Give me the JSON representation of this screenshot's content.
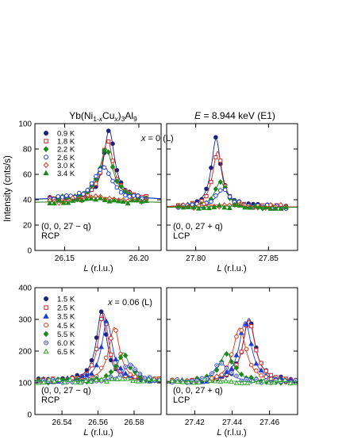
{
  "header": {
    "compound_parts": [
      "Yb(Ni",
      "1-",
      "x",
      "Cu",
      "x",
      ")",
      "3",
      "Al",
      "9"
    ],
    "energy_parts": [
      "E",
      " = 8.944 keV (E1)"
    ]
  },
  "y_axis_label": "Intensity  (cnts/s)",
  "colors": {
    "0.9 K": "#1a237e",
    "1.8 K": "#c62828",
    "2.2 K": "#1b8a1b",
    "2.6 K": "#1e3cd1",
    "3.0 K": "#d2391b",
    "3.4 K": "#1b8a1b",
    "1.5 K": "#1a237e",
    "2.5 K": "#c62828",
    "3.5 K": "#1e3cd1",
    "4.5 K": "#d2391b",
    "5.5 K": "#1b8a1b",
    "6.0 K": "#3a4bd6",
    "6.5 K": "#2ca02c"
  },
  "chart_data": [
    {
      "id": "p1",
      "type": "scatter",
      "annotation_parts": [
        "x",
        " = 0 (L)"
      ],
      "note_lines": [
        "(0, 0, 27 − q)",
        "RCP"
      ],
      "xlabel_parts": [
        "L",
        "  (r.l.u.)"
      ],
      "xlim": [
        26.13,
        26.215
      ],
      "ylim": [
        0,
        100
      ],
      "xticks": [
        26.15,
        26.2
      ],
      "xtick_labels": [
        "26.15",
        "26.20"
      ],
      "yticks": [
        0,
        20,
        40,
        60,
        80,
        100
      ],
      "ytick_labels": [
        "0",
        "20",
        "40",
        "60",
        "80",
        "100"
      ],
      "series": [
        {
          "name": "0.9 K",
          "marker": "circle",
          "filled": true,
          "center": 26.18,
          "width": 0.0045,
          "base": 40,
          "height": 55,
          "npts": 24,
          "xmin": 26.14,
          "xmax": 26.205
        },
        {
          "name": "1.8 K",
          "marker": "square",
          "filled": false,
          "center": 26.179,
          "width": 0.0047,
          "base": 40,
          "height": 47,
          "npts": 24,
          "xmin": 26.14,
          "xmax": 26.205
        },
        {
          "name": "2.2 K",
          "marker": "diamond",
          "filled": true,
          "center": 26.178,
          "width": 0.0055,
          "base": 40,
          "height": 40,
          "npts": 24,
          "xmin": 26.14,
          "xmax": 26.205
        },
        {
          "name": "2.6 K",
          "marker": "circle",
          "filled": false,
          "center": 26.176,
          "width": 0.007,
          "base": 40,
          "height": 27,
          "npts": 24,
          "xmin": 26.14,
          "xmax": 26.205
        },
        {
          "name": "3.0 K",
          "marker": "diamond",
          "filled": false,
          "center": 26.172,
          "width": 0.02,
          "base": 37,
          "height": 5,
          "npts": 22,
          "xmin": 26.14,
          "xmax": 26.205
        },
        {
          "name": "3.4 K",
          "marker": "triangle",
          "filled": true,
          "center": 26.172,
          "width": 0.01,
          "base": 38,
          "height": 2,
          "npts": 22,
          "xmin": 26.14,
          "xmax": 26.205
        }
      ]
    },
    {
      "id": "p2",
      "type": "scatter",
      "annotation_parts": [],
      "note_lines": [
        "(0, 0, 27 + q)",
        "LCP"
      ],
      "xlabel_parts": [
        "L",
        "  (r.l.u.)"
      ],
      "xlim": [
        27.78,
        27.87
      ],
      "ylim": [
        0,
        100
      ],
      "xticks": [
        27.8,
        27.85
      ],
      "xtick_labels": [
        "27.80",
        "27.85"
      ],
      "yticks": [
        0,
        20,
        40,
        60,
        80,
        100
      ],
      "ytick_labels": [],
      "series": [
        {
          "name": "0.9 K",
          "marker": "circle",
          "filled": true,
          "center": 27.814,
          "width": 0.004,
          "base": 34,
          "height": 54,
          "npts": 24,
          "xmin": 27.788,
          "xmax": 27.862
        },
        {
          "name": "1.8 K",
          "marker": "square",
          "filled": false,
          "center": 27.815,
          "width": 0.0042,
          "base": 34,
          "height": 44,
          "npts": 24,
          "xmin": 27.788,
          "xmax": 27.862
        },
        {
          "name": "2.2 K",
          "marker": "diamond",
          "filled": true,
          "center": 27.817,
          "width": 0.005,
          "base": 34,
          "height": 20,
          "npts": 24,
          "xmin": 27.788,
          "xmax": 27.862
        },
        {
          "name": "2.6 K",
          "marker": "circle",
          "filled": false,
          "center": 27.819,
          "width": 0.006,
          "base": 34,
          "height": 14,
          "npts": 24,
          "xmin": 27.788,
          "xmax": 27.862
        },
        {
          "name": "3.0 K",
          "marker": "diamond",
          "filled": false,
          "center": 27.82,
          "width": 0.02,
          "base": 34,
          "height": 2,
          "npts": 22,
          "xmin": 27.788,
          "xmax": 27.862
        },
        {
          "name": "3.4 K",
          "marker": "triangle",
          "filled": true,
          "center": 27.82,
          "width": 0.01,
          "base": 34,
          "height": 1,
          "npts": 22,
          "xmin": 27.788,
          "xmax": 27.862
        }
      ]
    },
    {
      "id": "p3",
      "type": "scatter",
      "annotation_parts": [
        "x",
        " = 0.06 (L)"
      ],
      "note_lines": [
        "(0, 0, 27 − q)",
        "RCP"
      ],
      "xlabel_parts": [
        "L",
        "  (r.l.u.)"
      ],
      "xlim": [
        26.525,
        26.595
      ],
      "ylim": [
        0,
        400
      ],
      "xticks": [
        26.54,
        26.56,
        26.58
      ],
      "xtick_labels": [
        "26.54",
        "26.56",
        "26.58"
      ],
      "yticks": [
        0,
        100,
        200,
        300,
        400
      ],
      "ytick_labels": [
        "0",
        "100",
        "200",
        "300",
        "400"
      ],
      "series": [
        {
          "name": "1.5 K",
          "marker": "circle",
          "filled": true,
          "center": 26.562,
          "width": 0.0035,
          "base": 105,
          "height": 220,
          "npts": 26,
          "xmin": 26.527,
          "xmax": 26.594
        },
        {
          "name": "2.5 K",
          "marker": "square",
          "filled": false,
          "center": 26.563,
          "width": 0.0035,
          "base": 105,
          "height": 215,
          "npts": 26,
          "xmin": 26.527,
          "xmax": 26.594
        },
        {
          "name": "3.5 K",
          "marker": "triangle",
          "filled": true,
          "center": 26.565,
          "width": 0.0036,
          "base": 105,
          "height": 190,
          "npts": 26,
          "xmin": 26.527,
          "xmax": 26.594
        },
        {
          "name": "4.5 K",
          "marker": "circle",
          "filled": false,
          "center": 26.569,
          "width": 0.0037,
          "base": 105,
          "height": 170,
          "npts": 26,
          "xmin": 26.527,
          "xmax": 26.594
        },
        {
          "name": "5.5 K",
          "marker": "diamond",
          "filled": true,
          "center": 26.574,
          "width": 0.004,
          "base": 105,
          "height": 90,
          "npts": 26,
          "xmin": 26.527,
          "xmax": 26.594
        },
        {
          "name": "6.0 K",
          "marker": "circle-dot",
          "filled": false,
          "center": 26.578,
          "width": 0.0045,
          "base": 105,
          "height": 55,
          "npts": 26,
          "xmin": 26.527,
          "xmax": 26.594
        },
        {
          "name": "6.5 K",
          "marker": "triangle",
          "filled": false,
          "center": 26.578,
          "width": 0.01,
          "base": 105,
          "height": 3,
          "npts": 24,
          "xmin": 26.527,
          "xmax": 26.594
        }
      ]
    },
    {
      "id": "p4",
      "type": "scatter",
      "annotation_parts": [],
      "note_lines": [
        "(0, 0, 27 + q)",
        "LCP"
      ],
      "xlabel_parts": [
        "L",
        "  (r.l.u.)"
      ],
      "xlim": [
        27.405,
        27.475
      ],
      "ylim": [
        0,
        400
      ],
      "xticks": [
        27.42,
        27.44,
        27.46
      ],
      "xtick_labels": [
        "27.42",
        "27.44",
        "27.46"
      ],
      "yticks": [
        0,
        100,
        200,
        300,
        400
      ],
      "ytick_labels": [],
      "series": [
        {
          "name": "1.5 K",
          "marker": "circle",
          "filled": true,
          "center": 27.449,
          "width": 0.004,
          "base": 103,
          "height": 200,
          "npts": 26,
          "xmin": 27.408,
          "xmax": 27.474
        },
        {
          "name": "2.5 K",
          "marker": "square",
          "filled": false,
          "center": 27.449,
          "width": 0.004,
          "base": 103,
          "height": 195,
          "npts": 26,
          "xmin": 27.408,
          "xmax": 27.474
        },
        {
          "name": "3.5 K",
          "marker": "triangle",
          "filled": true,
          "center": 27.447,
          "width": 0.004,
          "base": 103,
          "height": 190,
          "npts": 26,
          "xmin": 27.408,
          "xmax": 27.474
        },
        {
          "name": "4.5 K",
          "marker": "circle",
          "filled": false,
          "center": 27.444,
          "width": 0.0042,
          "base": 103,
          "height": 170,
          "npts": 26,
          "xmin": 27.408,
          "xmax": 27.474
        },
        {
          "name": "5.5 K",
          "marker": "diamond",
          "filled": true,
          "center": 27.437,
          "width": 0.0045,
          "base": 103,
          "height": 92,
          "npts": 26,
          "xmin": 27.408,
          "xmax": 27.474
        },
        {
          "name": "6.0 K",
          "marker": "circle-dot",
          "filled": false,
          "center": 27.434,
          "width": 0.0045,
          "base": 103,
          "height": 60,
          "npts": 26,
          "xmin": 27.408,
          "xmax": 27.474
        },
        {
          "name": "6.5 K",
          "marker": "triangle",
          "filled": false,
          "center": 27.434,
          "width": 0.01,
          "base": 103,
          "height": 3,
          "npts": 24,
          "xmin": 27.408,
          "xmax": 27.474
        }
      ]
    }
  ]
}
